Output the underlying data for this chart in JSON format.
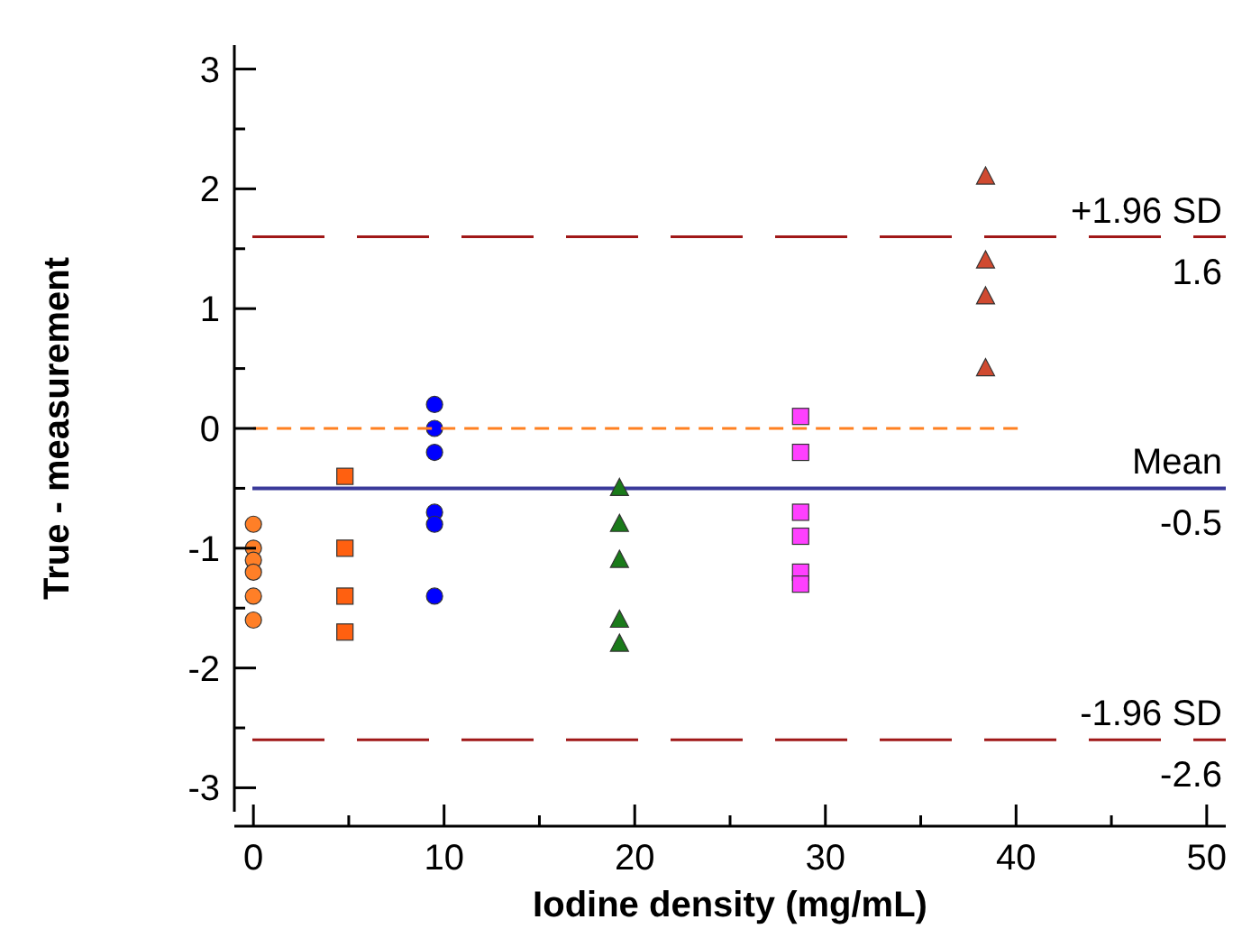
{
  "chart_data": {
    "type": "scatter",
    "xlabel": "Iodine density (mg/mL)",
    "ylabel": "True - measurement",
    "xlim": [
      -1,
      51
    ],
    "xticks": [
      0,
      {
        "value": 5,
        "label": null
      },
      10,
      {
        "value": 15,
        "label": null
      },
      20,
      {
        "value": 25,
        "label": null
      },
      30,
      {
        "value": 35,
        "label": null
      },
      40,
      {
        "value": 45,
        "label": null
      },
      50
    ],
    "ylim": [
      -3.2,
      3.2
    ],
    "yticks": [
      -3,
      {
        "value": -2.5,
        "label": null
      },
      -2,
      {
        "value": -1.5,
        "label": null
      },
      -1,
      {
        "value": -0.5,
        "label": null
      },
      0,
      {
        "value": 0.5,
        "label": null
      },
      1,
      {
        "value": 1.5,
        "label": null
      },
      2,
      {
        "value": 2.5,
        "label": null
      },
      3
    ],
    "grid": false,
    "annotations": [
      {
        "text": "1.6",
        "y": 1.6
      },
      {
        "text": "-0.5",
        "y": -0.5
      },
      {
        "text": "-2.6",
        "y": -2.6
      }
    ],
    "series": [
      {
        "type": "scatter",
        "marker": "circle",
        "color": "#ff7f27",
        "x": [
          0,
          0,
          0,
          0,
          0,
          0
        ],
        "values": [
          -0.8,
          -1.0,
          -1.1,
          -1.2,
          -1.4,
          -1.6
        ]
      },
      {
        "type": "scatter",
        "marker": "square",
        "color": "#ff6010",
        "x": [
          4.8,
          4.8,
          4.8,
          4.8
        ],
        "values": [
          -0.4,
          -1.0,
          -1.4,
          -1.7
        ]
      },
      {
        "type": "scatter",
        "marker": "circle",
        "color": "#0000ff",
        "x": [
          9.5,
          9.5,
          9.5,
          9.5,
          9.5,
          9.5
        ],
        "values": [
          0.2,
          0,
          -0.2,
          -0.7,
          -0.8,
          -1.4
        ]
      },
      {
        "type": "scatter",
        "marker": "triangle",
        "color": "#1a7a1a",
        "x": [
          19.2,
          19.2,
          19.2,
          19.2,
          19.2
        ],
        "values": [
          -0.5,
          -0.8,
          -1.1,
          -1.6,
          -1.8
        ]
      },
      {
        "type": "scatter",
        "marker": "square",
        "color": "#ff40ff",
        "x": [
          28.7,
          28.7,
          28.7,
          28.7,
          28.7,
          28.7
        ],
        "values": [
          0.1,
          -0.2,
          -0.7,
          -0.9,
          -1.2,
          -1.3
        ]
      },
      {
        "type": "scatter",
        "marker": "triangle",
        "color": "#d04a30",
        "x": [
          38.4,
          38.4,
          38.4,
          38.4
        ],
        "values": [
          2.1,
          1.4,
          1.1,
          0.5
        ]
      },
      {
        "type": "line",
        "marker": "none",
        "line_style": "dashed",
        "color": "#ff8020",
        "x": [
          0,
          40.3
        ],
        "values": [
          0,
          0
        ]
      }
    ],
    "ref_lines": [
      {
        "axis": "y",
        "value": 1.6,
        "label": "+1.96 SD",
        "color": "#a01818",
        "line_style": "dashed"
      },
      {
        "axis": "y",
        "value": -0.5,
        "label": "Mean",
        "color": "#3a3a9a",
        "line_style": "solid"
      },
      {
        "axis": "y",
        "value": -2.6,
        "label": "-1.96 SD",
        "color": "#a01818",
        "line_style": "dashed"
      }
    ]
  }
}
